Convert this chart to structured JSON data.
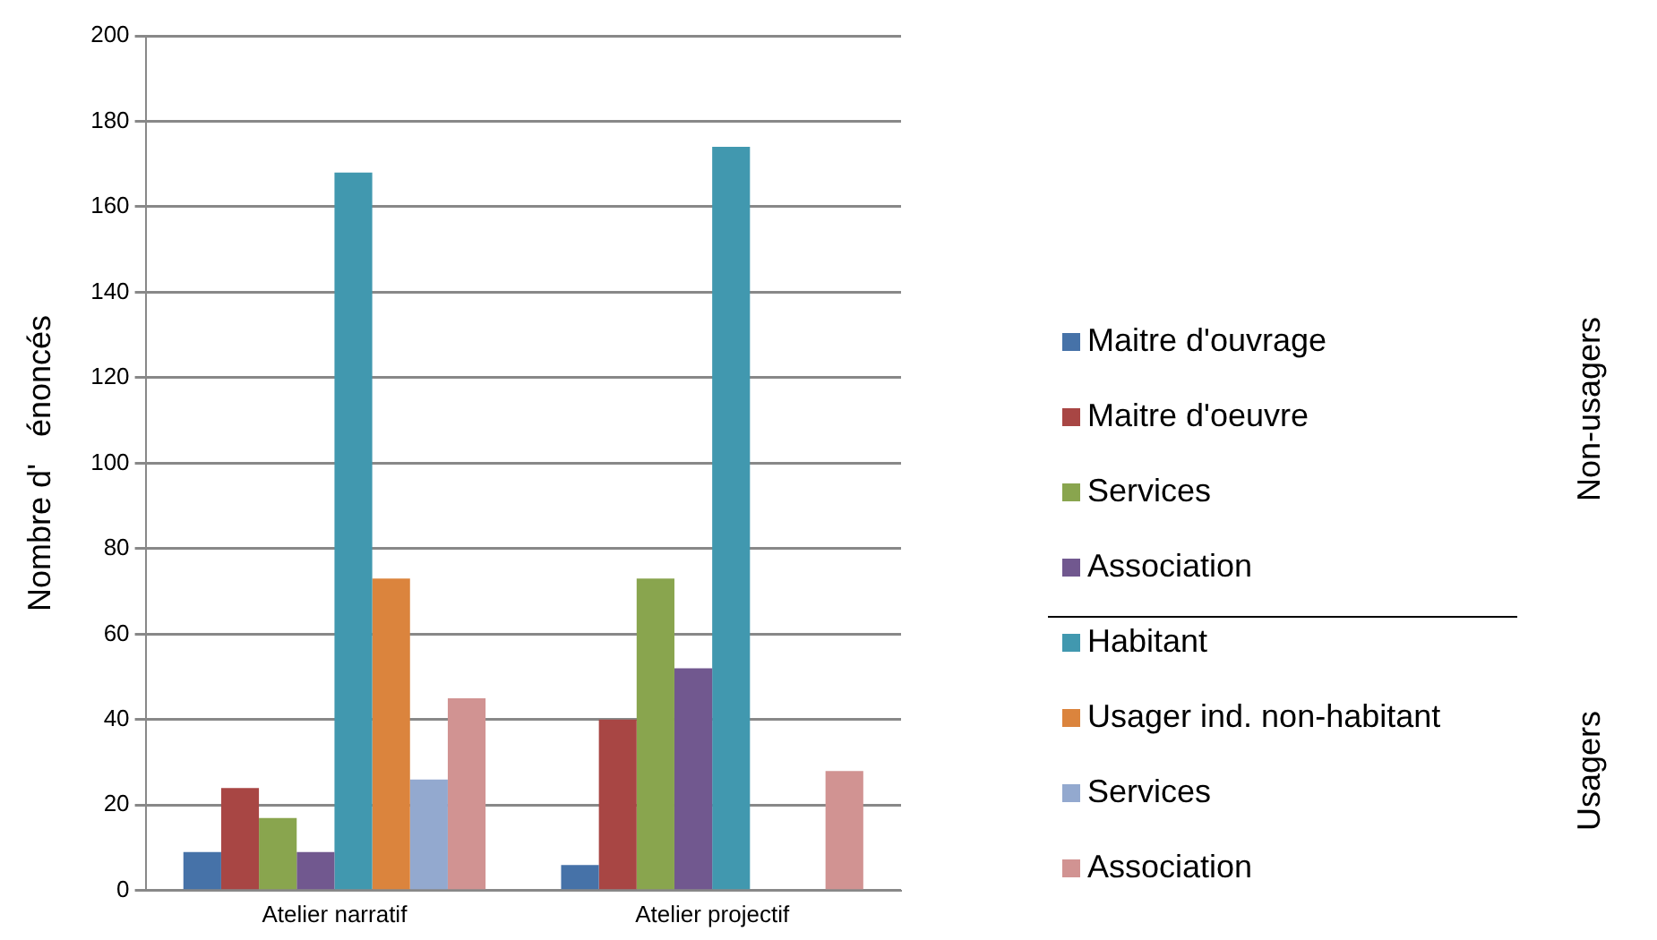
{
  "chart_data": {
    "type": "bar",
    "ylabel": "Nombre d'   énoncés",
    "categories": [
      "Atelier narratif",
      "Atelier projectif"
    ],
    "series": [
      {
        "name": "Maitre d'ouvrage",
        "color": "#4672a8",
        "values": [
          9,
          6
        ]
      },
      {
        "name": "Maitre d'oeuvre",
        "color": "#a84644",
        "values": [
          24,
          40
        ]
      },
      {
        "name": "Services",
        "color": "#89a54e",
        "values": [
          17,
          73
        ]
      },
      {
        "name": "Association",
        "color": "#71588f",
        "values": [
          9,
          52
        ]
      },
      {
        "name": "Habitant",
        "color": "#4198af",
        "values": [
          168,
          174
        ]
      },
      {
        "name": "Usager ind. non-habitant",
        "color": "#db843d",
        "values": [
          73,
          0
        ]
      },
      {
        "name": "Services",
        "color": "#93a9cf",
        "values": [
          26,
          0
        ]
      },
      {
        "name": "Association",
        "color": "#d19392",
        "values": [
          45,
          28
        ]
      }
    ],
    "ylim": [
      0,
      200
    ],
    "yticks": [
      0,
      20,
      40,
      60,
      80,
      100,
      120,
      140,
      160,
      180,
      200
    ],
    "grid": "y",
    "legend": "right",
    "annotations": [
      "Non-usagers",
      "Usagers"
    ]
  }
}
